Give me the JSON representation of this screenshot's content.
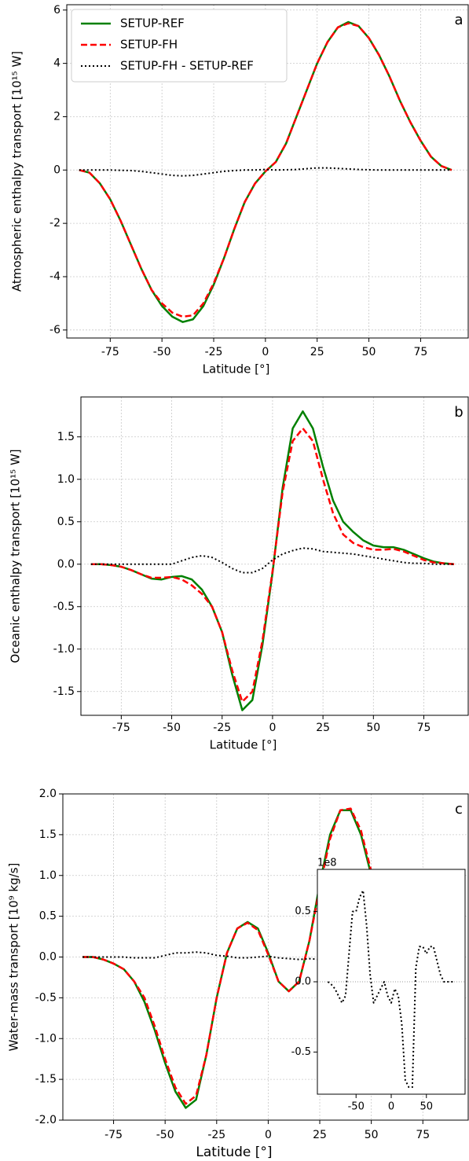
{
  "chart_data": [
    {
      "type": "line",
      "panel_label": "a",
      "ylabel": "Atmospheric enthalpy transport [10¹⁵ W]",
      "xlabel": "Latitude [°]",
      "x": [
        -90,
        -85,
        -80,
        -75,
        -70,
        -65,
        -60,
        -55,
        -50,
        -45,
        -40,
        -35,
        -30,
        -25,
        -20,
        -15,
        -10,
        -5,
        0,
        5,
        10,
        15,
        20,
        25,
        30,
        35,
        40,
        45,
        50,
        55,
        60,
        65,
        70,
        75,
        80,
        85,
        90
      ],
      "series": [
        {
          "name": "SETUP-REF",
          "color": "#008000",
          "style": "solid",
          "values": [
            0,
            -0.1,
            -0.5,
            -1.1,
            -1.9,
            -2.8,
            -3.7,
            -4.5,
            -5.1,
            -5.5,
            -5.7,
            -5.6,
            -5.1,
            -4.3,
            -3.3,
            -2.2,
            -1.2,
            -0.5,
            -0.05,
            0.3,
            1.0,
            2.0,
            3.0,
            4.0,
            4.8,
            5.35,
            5.55,
            5.4,
            4.95,
            4.3,
            3.5,
            2.6,
            1.8,
            1.1,
            0.5,
            0.15,
            0
          ]
        },
        {
          "name": "SETUP-FH",
          "color": "#ff0000",
          "style": "dashed",
          "values": [
            0,
            -0.1,
            -0.5,
            -1.1,
            -1.9,
            -2.8,
            -3.7,
            -4.5,
            -5.0,
            -5.35,
            -5.5,
            -5.45,
            -5.0,
            -4.25,
            -3.3,
            -2.2,
            -1.2,
            -0.5,
            -0.05,
            0.3,
            1.0,
            2.0,
            3.0,
            4.0,
            4.8,
            5.35,
            5.5,
            5.4,
            4.95,
            4.3,
            3.5,
            2.6,
            1.8,
            1.1,
            0.5,
            0.15,
            0
          ]
        },
        {
          "name": "SETUP-FH - SETUP-REF",
          "color": "#000000",
          "style": "dotted",
          "values": [
            0,
            0,
            0,
            0,
            -0.01,
            -0.02,
            -0.05,
            -0.1,
            -0.15,
            -0.2,
            -0.22,
            -0.2,
            -0.15,
            -0.1,
            -0.05,
            -0.02,
            0,
            0,
            0.02,
            0,
            0.01,
            0.02,
            0.05,
            0.08,
            0.08,
            0.06,
            0.04,
            0.02,
            0.01,
            0,
            0,
            0,
            0,
            0,
            0,
            0,
            0
          ]
        }
      ],
      "xlim": [
        -96,
        98
      ],
      "ylim": [
        -6.3,
        6.2
      ],
      "xticks": [
        -75,
        -50,
        -25,
        0,
        25,
        50,
        75
      ],
      "yticks": [
        -6,
        -4,
        -2,
        0,
        2,
        4,
        6
      ],
      "grid": true,
      "legend": "upper left"
    },
    {
      "type": "line",
      "panel_label": "b",
      "ylabel": "Oceanic enthalpy transport [10¹⁵ W]",
      "xlabel": "Latitude [°]",
      "x": [
        -90,
        -85,
        -80,
        -75,
        -70,
        -65,
        -60,
        -55,
        -50,
        -45,
        -40,
        -35,
        -30,
        -25,
        -20,
        -15,
        -10,
        -5,
        0,
        5,
        10,
        15,
        20,
        25,
        30,
        35,
        40,
        45,
        50,
        55,
        60,
        65,
        70,
        75,
        80,
        85,
        90
      ],
      "series": [
        {
          "color": "#008000",
          "style": "solid",
          "values": [
            0,
            0,
            -0.01,
            -0.03,
            -0.07,
            -0.12,
            -0.17,
            -0.18,
            -0.15,
            -0.14,
            -0.18,
            -0.3,
            -0.5,
            -0.8,
            -1.3,
            -1.72,
            -1.6,
            -0.95,
            -0.1,
            0.9,
            1.6,
            1.8,
            1.6,
            1.15,
            0.75,
            0.5,
            0.38,
            0.28,
            0.22,
            0.2,
            0.2,
            0.17,
            0.12,
            0.07,
            0.03,
            0.01,
            0
          ]
        },
        {
          "color": "#ff0000",
          "style": "dashed",
          "values": [
            0,
            0,
            -0.01,
            -0.03,
            -0.07,
            -0.12,
            -0.16,
            -0.16,
            -0.15,
            -0.18,
            -0.25,
            -0.35,
            -0.5,
            -0.8,
            -1.25,
            -1.62,
            -1.5,
            -0.9,
            -0.08,
            0.85,
            1.45,
            1.6,
            1.45,
            1.0,
            0.6,
            0.35,
            0.25,
            0.2,
            0.17,
            0.17,
            0.18,
            0.15,
            0.1,
            0.05,
            0.02,
            0.01,
            0
          ]
        },
        {
          "color": "#000000",
          "style": "dotted",
          "values": [
            0,
            0,
            0,
            0,
            0,
            0,
            0,
            0,
            0,
            0.04,
            0.08,
            0.1,
            0.08,
            0.02,
            -0.05,
            -0.1,
            -0.1,
            -0.05,
            0.05,
            0.12,
            0.16,
            0.19,
            0.18,
            0.15,
            0.14,
            0.13,
            0.12,
            0.1,
            0.08,
            0.06,
            0.04,
            0.02,
            0.01,
            0.01,
            0,
            0,
            0
          ]
        }
      ],
      "xlim": [
        -95,
        97
      ],
      "ylim": [
        -1.78,
        1.97
      ],
      "xticks": [
        -75,
        -50,
        -25,
        0,
        25,
        50,
        75
      ],
      "yticks": [
        -1.5,
        {
          "value": -1,
          "label": "-1.0"
        },
        -0.5,
        {
          "value": 0,
          "label": "0.0"
        },
        0.5,
        {
          "value": 1,
          "label": "1.0"
        },
        1.5
      ],
      "grid": true
    },
    {
      "type": "line",
      "panel_label": "c",
      "ylabel": "Water-mass transport [10⁹ kg/s]",
      "xlabel": "Latitude [°]",
      "x": [
        -90,
        -85,
        -80,
        -75,
        -70,
        -65,
        -60,
        -55,
        -50,
        -45,
        -40,
        -35,
        -30,
        -25,
        -20,
        -15,
        -10,
        -5,
        0,
        5,
        10,
        15,
        20,
        25,
        30,
        35,
        40,
        45,
        50,
        55,
        60,
        65,
        70,
        75,
        80,
        85,
        90
      ],
      "series": [
        {
          "color": "#008000",
          "style": "solid",
          "values": [
            0,
            0,
            -0.03,
            -0.08,
            -0.15,
            -0.3,
            -0.55,
            -0.9,
            -1.3,
            -1.65,
            -1.85,
            -1.75,
            -1.2,
            -0.5,
            0.05,
            0.35,
            0.43,
            0.35,
            0.05,
            -0.3,
            -0.42,
            -0.3,
            0.2,
            0.9,
            1.5,
            1.8,
            1.8,
            1.5,
            1.0,
            0.6,
            0.35,
            0.2,
            0.12,
            0.07,
            0.03,
            0.01,
            0
          ]
        },
        {
          "color": "#ff0000",
          "style": "dashed",
          "values": [
            0,
            0,
            -0.03,
            -0.08,
            -0.15,
            -0.3,
            -0.5,
            -0.85,
            -1.25,
            -1.6,
            -1.8,
            -1.7,
            -1.2,
            -0.5,
            0.05,
            0.35,
            0.42,
            0.33,
            0.03,
            -0.3,
            -0.42,
            -0.3,
            0.2,
            0.85,
            1.45,
            1.8,
            1.82,
            1.55,
            1.05,
            0.65,
            0.38,
            0.22,
            0.13,
            0.07,
            0.03,
            0.01,
            0
          ]
        },
        {
          "color": "#000000",
          "style": "dotted",
          "values": [
            0,
            0,
            0,
            0,
            0,
            -0.01,
            -0.01,
            -0.01,
            0.02,
            0.05,
            0.05,
            0.06,
            0.05,
            0.02,
            0.01,
            -0.01,
            -0.01,
            0,
            0.01,
            -0.01,
            -0.02,
            -0.03,
            -0.02,
            -0.03,
            -0.06,
            -0.03,
            0.02,
            0.03,
            0.03,
            0.02,
            0.01,
            0,
            0,
            0,
            0,
            0,
            0
          ]
        }
      ],
      "xlim": [
        -99.6,
        97
      ],
      "ylim": [
        -2,
        2
      ],
      "xticks": [
        -75,
        -50,
        -25,
        0,
        25,
        50,
        75
      ],
      "yticks": [
        {
          "value": -2,
          "label": "-2.0"
        },
        -1.5,
        {
          "value": -1,
          "label": "-1.0"
        },
        -0.5,
        {
          "value": 0,
          "label": "0.0"
        },
        0.5,
        {
          "value": 1,
          "label": "1.0"
        },
        1.5,
        {
          "value": 2,
          "label": "2.0"
        }
      ],
      "grid": true
    },
    {
      "type": "line",
      "offset_text": "1e8",
      "x": [
        -90,
        -85,
        -80,
        -75,
        -70,
        -65,
        -60,
        -55,
        -50,
        -45,
        -40,
        -35,
        -30,
        -25,
        -20,
        -15,
        -10,
        -5,
        0,
        5,
        10,
        15,
        20,
        25,
        30,
        35,
        40,
        45,
        50,
        55,
        60,
        65,
        70,
        75,
        80,
        85,
        90
      ],
      "series": [
        {
          "color": "#000000",
          "style": "dotted",
          "values": [
            0,
            -0.02,
            -0.05,
            -0.1,
            -0.15,
            -0.1,
            0.2,
            0.5,
            0.5,
            0.6,
            0.65,
            0.4,
            0.05,
            -0.15,
            -0.1,
            -0.05,
            0,
            -0.1,
            -0.15,
            -0.05,
            -0.1,
            -0.3,
            -0.7,
            -0.75,
            -0.75,
            0.1,
            0.25,
            0.25,
            0.2,
            0.25,
            0.25,
            0.15,
            0.05,
            0,
            0,
            0,
            0
          ]
        }
      ],
      "xlim": [
        -105,
        105
      ],
      "ylim": [
        -0.8,
        0.8
      ],
      "xticks": [
        -50,
        0,
        50
      ],
      "yticks": [
        -0.5,
        {
          "value": 0,
          "label": "0.0"
        },
        0.5
      ],
      "grid": false,
      "zero_line": true
    }
  ]
}
